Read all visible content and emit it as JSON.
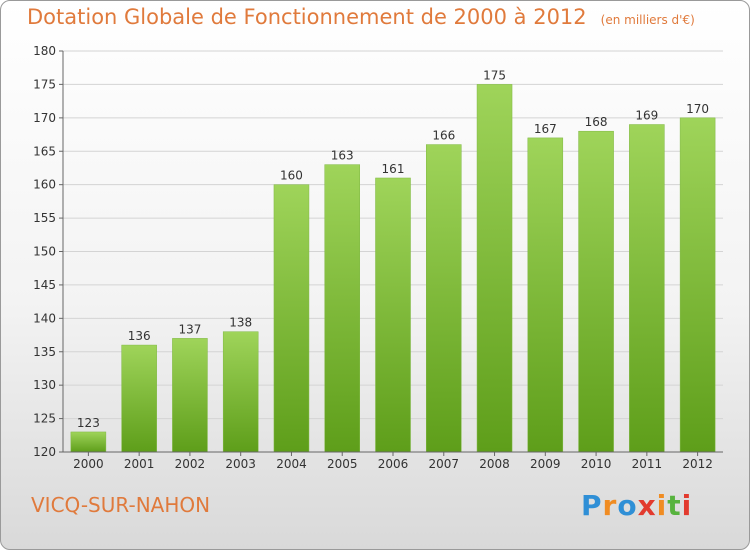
{
  "title": "Dotation Globale de Fonctionnement de 2000 à 2012",
  "unit_note": "(en milliers d'€)",
  "commune": "VICQ-SUR-NAHON",
  "logo": {
    "letters": [
      "P",
      "r",
      "o",
      "x",
      "i",
      "t",
      "i"
    ],
    "colors": [
      "#2f8fd6",
      "#f08c22",
      "#2f8fd6",
      "#e23a2e",
      "#f08c22",
      "#57b33e",
      "#e23a2e"
    ]
  },
  "colors": {
    "title": "#e07a3c",
    "bar_top": "#9fd45a",
    "bar_bottom": "#5e9e1a",
    "grid": "#d4d4d4"
  },
  "chart_data": {
    "type": "bar",
    "categories": [
      "2000",
      "2001",
      "2002",
      "2003",
      "2004",
      "2005",
      "2006",
      "2007",
      "2008",
      "2009",
      "2010",
      "2011",
      "2012"
    ],
    "values": [
      123,
      136,
      137,
      138,
      160,
      163,
      161,
      166,
      175,
      167,
      168,
      169,
      170
    ],
    "ylim": [
      120,
      180
    ],
    "yticks": [
      "120",
      "125",
      "130",
      "135",
      "140",
      "145",
      "150",
      "155",
      "160",
      "165",
      "170",
      "175",
      "180"
    ],
    "grid": true,
    "legend": "none"
  }
}
